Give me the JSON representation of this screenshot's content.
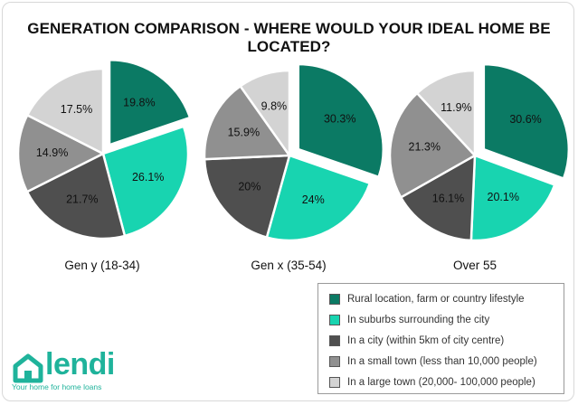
{
  "chart_data": [
    {
      "type": "pie",
      "title": "Gen y (18-34)",
      "categories": [
        "Rural location, farm or country lifestyle",
        "In suburbs surrounding the city",
        "In a city (within 5km of city centre)",
        "In a small town (less than 10,000 people)",
        "In a large town (20,000- 100,000 people)"
      ],
      "values": [
        19.8,
        26.1,
        21.7,
        14.9,
        17.5
      ],
      "labels": [
        "19.8%",
        "26.1%",
        "21.7%",
        "14.9%",
        "17.5%"
      ]
    },
    {
      "type": "pie",
      "title": "Gen x (35-54)",
      "categories": [
        "Rural location, farm or country lifestyle",
        "In suburbs surrounding the city",
        "In a city (within 5km of city centre)",
        "In a small town (less than 10,000 people)",
        "In a large town (20,000- 100,000 people)"
      ],
      "values": [
        30.3,
        24,
        20,
        15.9,
        9.8
      ],
      "labels": [
        "30.3%",
        "24%",
        "20%",
        "15.9%",
        "9.8%"
      ]
    },
    {
      "type": "pie",
      "title": "Over 55",
      "categories": [
        "Rural location, farm or country lifestyle",
        "In suburbs surrounding the city",
        "In a city (within 5km of city centre)",
        "In a small town (less than 10,000 people)",
        "In a large town (20,000- 100,000 people)"
      ],
      "values": [
        30.6,
        20.1,
        16.1,
        21.3,
        11.9
      ],
      "labels": [
        "30.6%",
        "20.1%",
        "16.1%",
        "21.3%",
        "11.9%"
      ]
    }
  ],
  "title": "GENERATION COMPARISON - WHERE WOULD YOUR IDEAL HOME BE LOCATED?",
  "legend": {
    "placement": "bottom-right",
    "items": [
      {
        "label": "Rural location, farm or country lifestyle",
        "color": "#0b7a64"
      },
      {
        "label": "In suburbs surrounding the city",
        "color": "#18d4b0"
      },
      {
        "label": "In a city (within 5km of city centre)",
        "color": "#4f4f4f"
      },
      {
        "label": "In a small town (less than 10,000 people)",
        "color": "#909090"
      },
      {
        "label": "In a large town (20,000- 100,000 people)",
        "color": "#d3d3d3"
      }
    ]
  },
  "slice_label_color": "#111111",
  "logo": {
    "wordmark": "lendi",
    "tagline": "Your home for home loans",
    "icon": "house-icon",
    "color": "#1fb39b"
  }
}
